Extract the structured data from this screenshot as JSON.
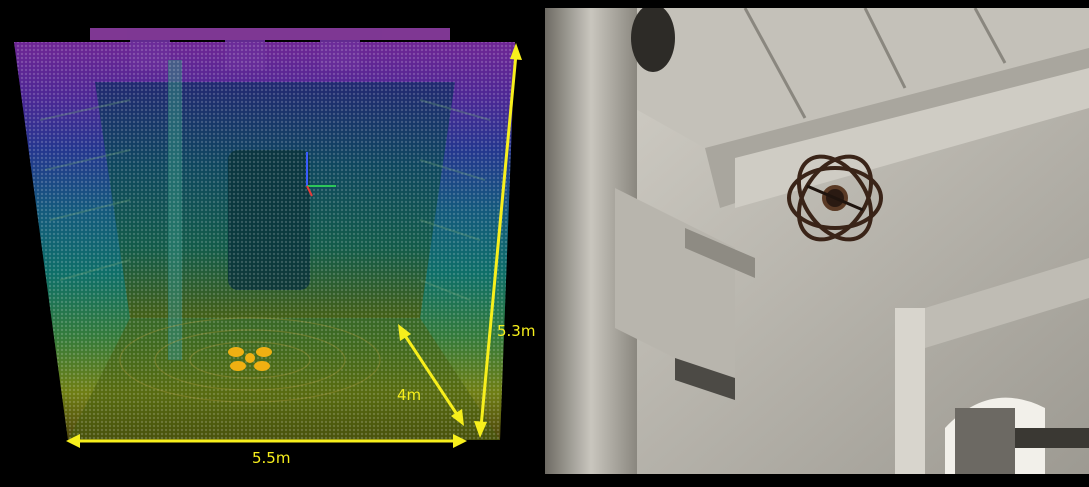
{
  "scan_panel": {
    "dimensions": {
      "height": "5.3m",
      "depth": "4m",
      "width": "5.5m"
    },
    "colors": {
      "annotation": "#f7ef1c",
      "scan_top": "#b23cf0",
      "scan_mid": "#15b2a8",
      "scan_bottom": "#d6c413"
    }
  },
  "photo_panel": {
    "subject": "drone-icon",
    "colors": {
      "wall": "#bdbab2",
      "frame": "#3a2418"
    }
  }
}
